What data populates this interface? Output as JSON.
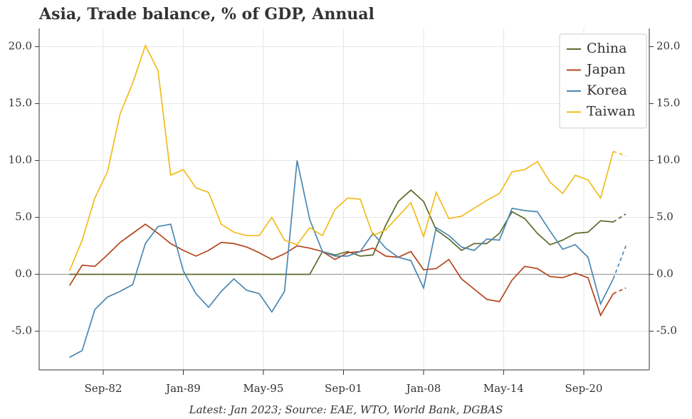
{
  "chart_data": {
    "type": "line",
    "title": "Asia, Trade balance, % of GDP, Annual",
    "footnote": "Latest: Jan 2023; Source: EAE, WTO, World Bank, DGBAS",
    "x": [
      1980,
      1981,
      1982,
      1983,
      1984,
      1985,
      1986,
      1987,
      1988,
      1989,
      1990,
      1991,
      1992,
      1993,
      1994,
      1995,
      1996,
      1997,
      1998,
      1999,
      2000,
      2001,
      2002,
      2003,
      2004,
      2005,
      2006,
      2007,
      2008,
      2009,
      2010,
      2011,
      2012,
      2013,
      2014,
      2015,
      2016,
      2017,
      2018,
      2019,
      2020,
      2021,
      2022,
      2023,
      2024
    ],
    "series": [
      {
        "name": "China",
        "color": "#5b6b2b",
        "values": [
          0,
          0,
          0,
          0,
          0,
          0,
          0,
          0,
          0,
          0,
          0,
          0,
          0,
          0,
          0,
          0,
          0,
          0,
          0,
          0,
          2.0,
          1.7,
          2.0,
          1.6,
          1.7,
          4.3,
          6.4,
          7.4,
          6.4,
          3.9,
          3.1,
          2.1,
          2.7,
          2.7,
          3.6,
          5.5,
          4.9,
          3.6,
          2.6,
          3.0,
          3.6,
          3.7,
          4.7,
          4.6,
          5.3
        ]
      },
      {
        "name": "Japan",
        "color": "#b5441c",
        "values": [
          -1.0,
          0.8,
          0.7,
          1.7,
          2.8,
          3.6,
          4.4,
          3.6,
          2.7,
          2.1,
          1.6,
          2.1,
          2.8,
          2.7,
          2.4,
          1.9,
          1.3,
          1.8,
          2.5,
          2.3,
          2.0,
          1.3,
          1.9,
          2.0,
          2.3,
          1.6,
          1.5,
          2.0,
          0.4,
          0.5,
          1.3,
          -0.4,
          -1.3,
          -2.2,
          -2.4,
          -0.5,
          0.7,
          0.5,
          -0.2,
          -0.3,
          0.1,
          -0.3,
          -3.6,
          -1.7,
          -1.2
        ]
      },
      {
        "name": "Korea",
        "color": "#4a87b3",
        "values": [
          -7.3,
          -6.7,
          -3.1,
          -2.0,
          -1.5,
          -0.9,
          2.7,
          4.2,
          4.4,
          0.3,
          -1.7,
          -2.9,
          -1.5,
          -0.4,
          -1.4,
          -1.7,
          -3.3,
          -1.5,
          10.0,
          4.8,
          2.0,
          1.6,
          1.6,
          2.0,
          3.6,
          2.3,
          1.5,
          1.2,
          -1.2,
          4.1,
          3.4,
          2.4,
          2.1,
          3.1,
          3.0,
          5.8,
          5.6,
          5.5,
          3.8,
          2.2,
          2.6,
          1.5,
          -2.6,
          -0.4,
          2.5
        ]
      },
      {
        "name": "Taiwan",
        "color": "#f2bb1a",
        "values": [
          0.3,
          3.0,
          6.7,
          9.0,
          14.1,
          16.8,
          20.1,
          17.9,
          8.7,
          9.2,
          7.6,
          7.2,
          4.4,
          3.7,
          3.4,
          3.4,
          5.0,
          3.0,
          2.6,
          4.1,
          3.4,
          5.7,
          6.7,
          6.6,
          3.4,
          3.9,
          5.1,
          6.3,
          3.3,
          7.2,
          4.9,
          5.1,
          5.8,
          6.5,
          7.1,
          9.0,
          9.2,
          9.9,
          8.1,
          7.1,
          8.7,
          8.3,
          6.7,
          10.8,
          10.4
        ]
      }
    ],
    "xlim": [
      1977.6,
      2025.85
    ],
    "xticks": [
      {
        "value": 1982.67,
        "label": "Sep-82"
      },
      {
        "value": 1989.0,
        "label": "Jan-89"
      },
      {
        "value": 1995.33,
        "label": "May-95"
      },
      {
        "value": 2001.67,
        "label": "Sep-01"
      },
      {
        "value": 2008.0,
        "label": "Jan-08"
      },
      {
        "value": 2014.33,
        "label": "May-14"
      },
      {
        "value": 2020.67,
        "label": "Sep-20"
      }
    ],
    "ylim": [
      -8.4,
      21.6
    ],
    "yticks": [
      {
        "value": -5,
        "label": "-5.0"
      },
      {
        "value": 0,
        "label": "0.0"
      },
      {
        "value": 5,
        "label": "5.0"
      },
      {
        "value": 10,
        "label": "10.0"
      },
      {
        "value": 15,
        "label": "15.0"
      },
      {
        "value": 20,
        "label": "20.0"
      }
    ],
    "grid": true,
    "legend": "upper right"
  }
}
